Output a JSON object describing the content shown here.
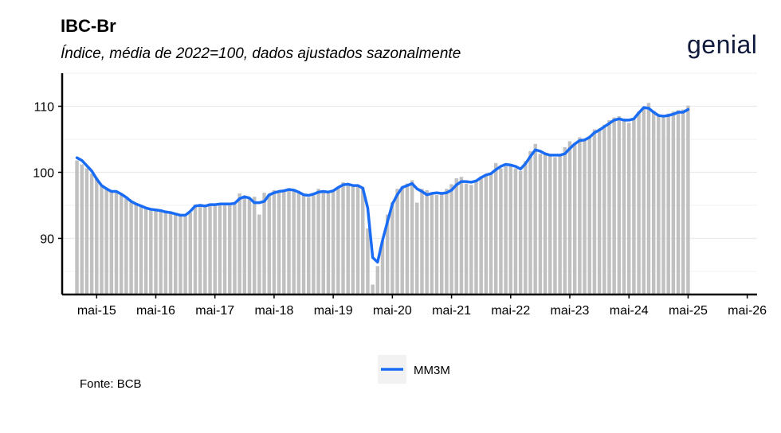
{
  "header": {
    "title": "IBC-Br",
    "subtitle": "Índice, média de 2022=100, dados ajustados sazonalmente",
    "logo_text": "genial"
  },
  "footer": {
    "source": "Fonte: BCB"
  },
  "colors": {
    "bars": "#c0c0c0",
    "line": "#1a6cf5",
    "grid": "#ebebeb",
    "axis": "#000000",
    "legend_key_bg": "#f2f2f2"
  },
  "chart_data": {
    "type": "bar",
    "bar_series_label": "",
    "line_series_name": "MM3M",
    "x_start": "2015-01",
    "x_ticks": [
      {
        "label": "mai-15",
        "month": "2015-05"
      },
      {
        "label": "mai-16",
        "month": "2016-05"
      },
      {
        "label": "mai-17",
        "month": "2017-05"
      },
      {
        "label": "mai-18",
        "month": "2018-05"
      },
      {
        "label": "mai-19",
        "month": "2019-05"
      },
      {
        "label": "mai-20",
        "month": "2020-05"
      },
      {
        "label": "mai-21",
        "month": "2021-05"
      },
      {
        "label": "mai-22",
        "month": "2022-05"
      },
      {
        "label": "mai-23",
        "month": "2023-05"
      },
      {
        "label": "mai-24",
        "month": "2024-05"
      },
      {
        "label": "mai-25",
        "month": "2025-05"
      },
      {
        "label": "mai-26",
        "month": "2026-05"
      }
    ],
    "y_ticks": [
      90,
      100,
      110
    ],
    "ylim": [
      81.5,
      115
    ],
    "xlim": [
      "2014-10",
      "2026-07"
    ],
    "grid": true,
    "legend_position": "bottom",
    "bars": [
      101.8,
      101.2,
      100.6,
      99.8,
      99.2,
      98.0,
      97.5,
      97.1,
      96.9,
      96.6,
      96.0,
      95.6,
      95.2,
      94.9,
      94.5,
      94.3,
      94.4,
      94.1,
      94.0,
      93.9,
      93.7,
      93.5,
      93.3,
      93.9,
      95.1,
      95.2,
      94.8,
      95.3,
      95.1,
      95.2,
      95.4,
      95.3,
      95.2,
      96.8,
      96.2,
      96.1,
      96.3,
      93.6,
      96.9,
      96.7,
      97.3,
      97.1,
      97.2,
      97.6,
      97.4,
      97.0,
      96.6,
      96.2,
      96.5,
      97.5,
      97.0,
      96.8,
      97.3,
      97.6,
      98.5,
      98.2,
      98.0,
      98.1,
      97.8,
      91.5,
      83.0,
      85.8,
      89.6,
      93.6,
      95.5,
      97.5,
      97.8,
      98.3,
      98.8,
      95.4,
      97.5,
      97.3,
      96.7,
      96.6,
      96.9,
      97.5,
      98.2,
      99.1,
      99.3,
      98.3,
      98.1,
      98.6,
      99.4,
      99.7,
      99.9,
      101.4,
      100.6,
      101.1,
      101.0,
      100.6,
      100.2,
      101.7,
      103.2,
      104.3,
      102.8,
      102.8,
      102.6,
      102.3,
      102.7,
      103.8,
      104.7,
      104.4,
      105.3,
      105.0,
      105.5,
      106.5,
      106.6,
      107.2,
      107.9,
      108.3,
      108.5,
      108.0,
      107.5,
      108.0,
      109.2,
      109.9,
      110.5,
      109.3,
      108.7,
      108.6,
      108.9,
      109.2,
      109.4,
      109.5,
      110.1
    ],
    "line": [
      102.2,
      101.8,
      101.0,
      100.2,
      99.0,
      98.0,
      97.5,
      97.1,
      97.1,
      96.7,
      96.2,
      95.6,
      95.2,
      94.9,
      94.6,
      94.4,
      94.3,
      94.2,
      94.0,
      93.9,
      93.7,
      93.5,
      93.5,
      94.1,
      94.9,
      95.0,
      94.9,
      95.1,
      95.1,
      95.2,
      95.2,
      95.2,
      95.3,
      96.0,
      96.3,
      96.1,
      95.4,
      95.4,
      95.6,
      96.6,
      96.9,
      97.1,
      97.2,
      97.4,
      97.3,
      97.0,
      96.6,
      96.5,
      96.7,
      97.0,
      97.1,
      97.0,
      97.2,
      97.7,
      98.1,
      98.2,
      98.0,
      98.0,
      97.6,
      94.6,
      87.1,
      86.4,
      89.7,
      92.5,
      95.2,
      96.6,
      97.7,
      98.0,
      98.3,
      97.5,
      97.1,
      96.6,
      96.8,
      96.9,
      96.8,
      96.9,
      97.3,
      98.1,
      98.6,
      98.6,
      98.5,
      98.7,
      99.2,
      99.6,
      99.8,
      100.4,
      100.9,
      101.2,
      101.1,
      100.9,
      100.5,
      101.3,
      102.4,
      103.4,
      103.2,
      102.8,
      102.6,
      102.6,
      102.6,
      102.8,
      103.6,
      104.3,
      104.8,
      104.9,
      105.3,
      106.0,
      106.4,
      106.9,
      107.4,
      107.9,
      108.1,
      107.9,
      107.9,
      108.1,
      109.0,
      109.8,
      109.7,
      109.1,
      108.6,
      108.5,
      108.6,
      108.8,
      109.1,
      109.1,
      109.5
    ]
  }
}
